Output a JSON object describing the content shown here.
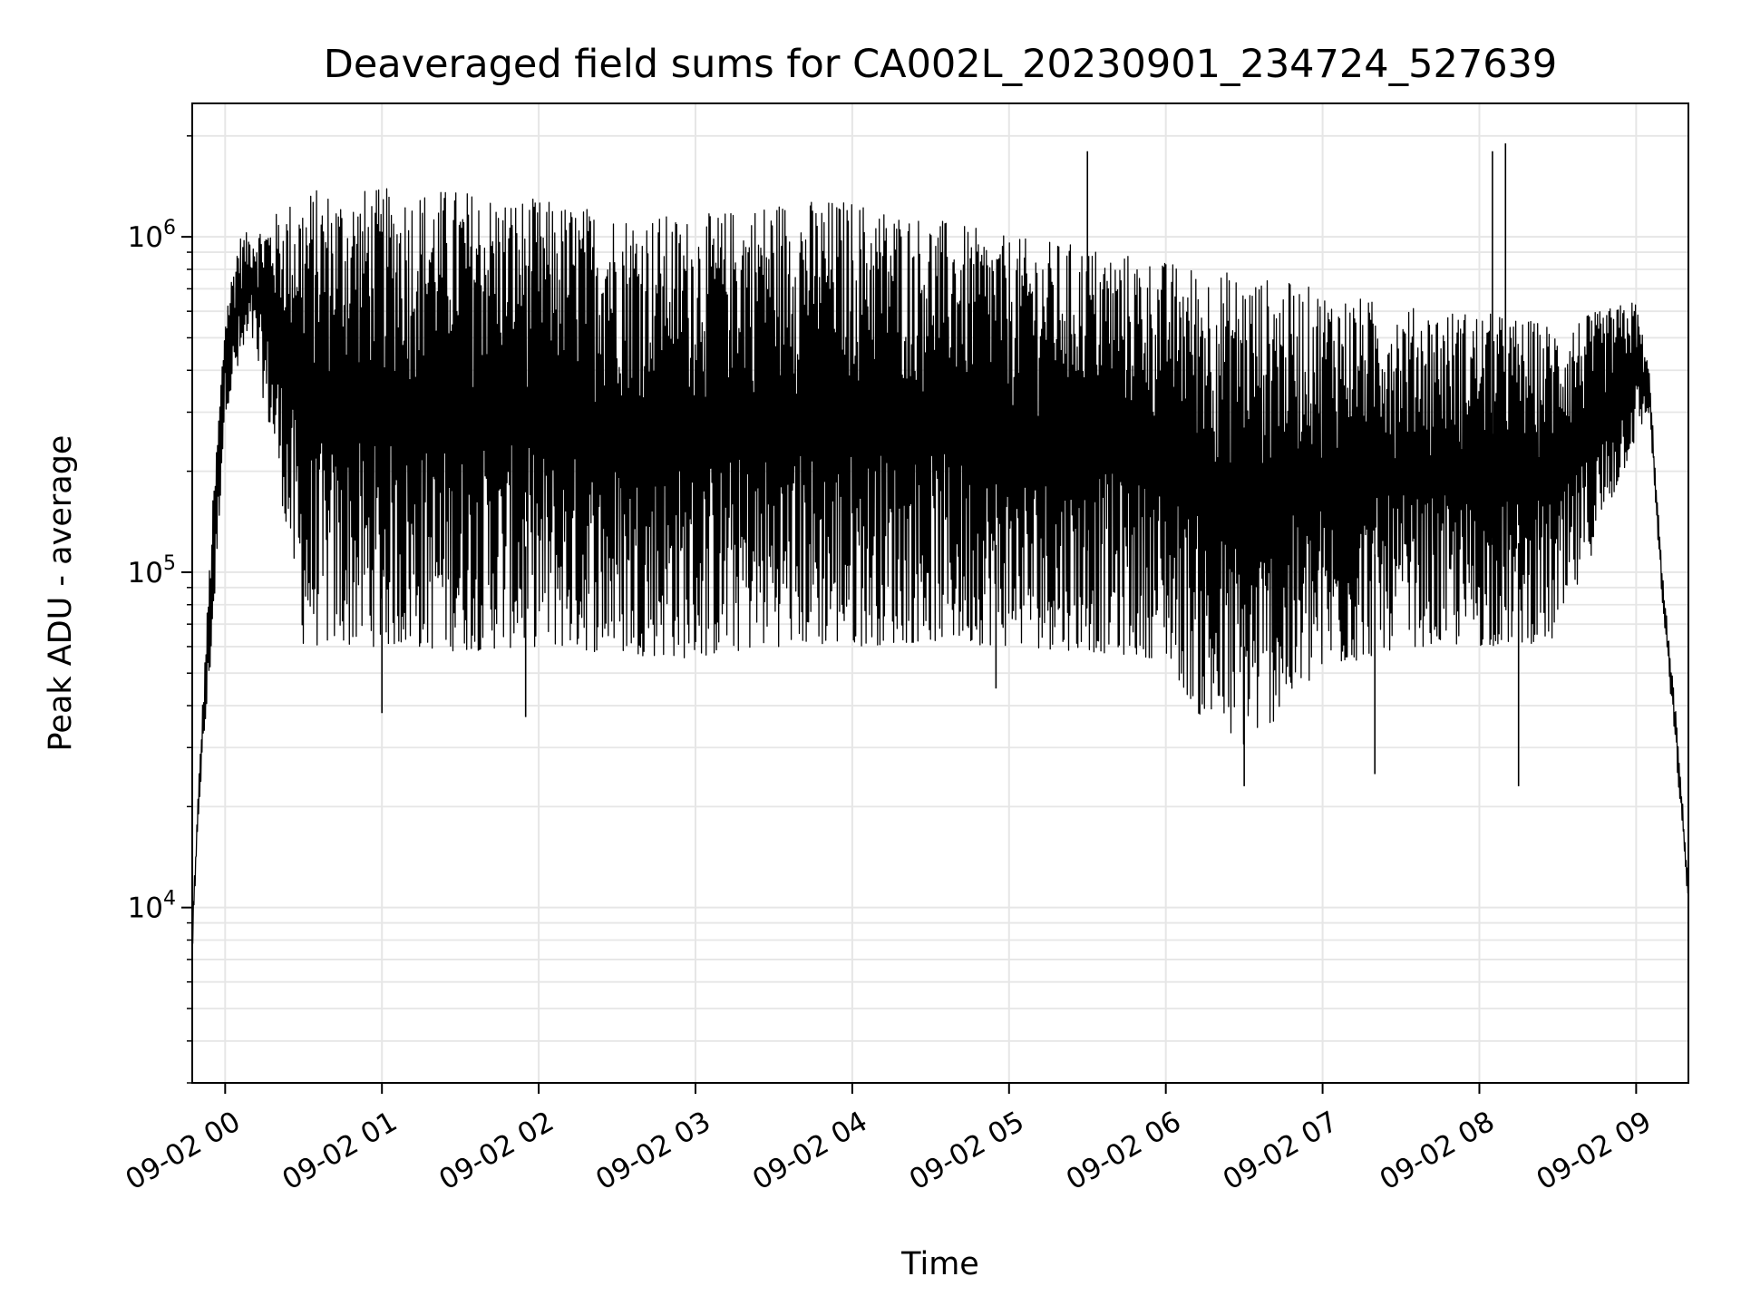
{
  "chart_data": {
    "type": "line",
    "title": "Deaveraged field sums for CA002L_20230901_234724_527639",
    "xlabel": "Time",
    "ylabel": "Peak ADU - average",
    "yscale": "log",
    "ylim": [
      3000,
      2500000
    ],
    "xlim": [
      "2023-09-01 23:47:24",
      "2023-09-02 09:20:00"
    ],
    "grid": true,
    "legend": "none",
    "colors": {
      "line": "#000000",
      "grid": "#e6e6e6"
    },
    "x_ticks": [
      {
        "time": "2023-09-02 00:00",
        "label": "09-02 00"
      },
      {
        "time": "2023-09-02 01:00",
        "label": "09-02 01"
      },
      {
        "time": "2023-09-02 02:00",
        "label": "09-02 02"
      },
      {
        "time": "2023-09-02 03:00",
        "label": "09-02 03"
      },
      {
        "time": "2023-09-02 04:00",
        "label": "09-02 04"
      },
      {
        "time": "2023-09-02 05:00",
        "label": "09-02 05"
      },
      {
        "time": "2023-09-02 06:00",
        "label": "09-02 06"
      },
      {
        "time": "2023-09-02 07:00",
        "label": "09-02 07"
      },
      {
        "time": "2023-09-02 08:00",
        "label": "09-02 08"
      },
      {
        "time": "2023-09-02 09:00",
        "label": "09-02 09"
      }
    ],
    "y_ticks": [
      {
        "value": 10000,
        "base": "10",
        "exp": "4"
      },
      {
        "value": 100000,
        "base": "10",
        "exp": "5"
      },
      {
        "value": 1000000,
        "base": "10",
        "exp": "6"
      }
    ],
    "series": [
      {
        "style": "dense oscillating trace between lower and upper envelopes",
        "upper_envelope": [
          [
            "2023-09-01 23:47:24",
            9000
          ],
          [
            "2023-09-01 23:50",
            25000
          ],
          [
            "2023-09-01 23:55",
            150000
          ],
          [
            "2023-09-02 00:00",
            600000
          ],
          [
            "2023-09-02 00:05",
            1000000
          ],
          [
            "2023-09-02 00:15",
            1100000
          ],
          [
            "2023-09-02 00:30",
            1400000
          ],
          [
            "2023-09-02 01:00",
            1400000
          ],
          [
            "2023-09-02 01:30",
            1400000
          ],
          [
            "2023-09-02 02:00",
            1300000
          ],
          [
            "2023-09-02 02:30",
            1200000
          ],
          [
            "2023-09-02 03:00",
            1150000
          ],
          [
            "2023-09-02 03:30",
            1300000
          ],
          [
            "2023-09-02 04:00",
            1300000
          ],
          [
            "2023-09-02 04:30",
            1150000
          ],
          [
            "2023-09-02 05:00",
            1000000
          ],
          [
            "2023-09-02 05:30",
            950000
          ],
          [
            "2023-09-02 06:00",
            850000
          ],
          [
            "2023-09-02 06:30",
            780000
          ],
          [
            "2023-09-02 07:00",
            700000
          ],
          [
            "2023-09-02 07:30",
            620000
          ],
          [
            "2023-09-02 08:00",
            600000
          ],
          [
            "2023-09-02 08:30",
            550000
          ],
          [
            "2023-09-02 09:00",
            650000
          ],
          [
            "2023-09-02 09:05",
            400000
          ],
          [
            "2023-09-02 09:10",
            100000
          ],
          [
            "2023-09-02 09:15",
            40000
          ],
          [
            "2023-09-02 09:20:00",
            12000
          ]
        ],
        "lower_envelope": [
          [
            "2023-09-01 23:47:24",
            7000
          ],
          [
            "2023-09-01 23:50",
            20000
          ],
          [
            "2023-09-01 23:55",
            60000
          ],
          [
            "2023-09-02 00:00",
            300000
          ],
          [
            "2023-09-02 00:10",
            500000
          ],
          [
            "2023-09-02 00:20",
            200000
          ],
          [
            "2023-09-02 00:30",
            60000
          ],
          [
            "2023-09-02 01:00",
            60000
          ],
          [
            "2023-09-02 01:30",
            58000
          ],
          [
            "2023-09-02 02:00",
            60000
          ],
          [
            "2023-09-02 02:30",
            57000
          ],
          [
            "2023-09-02 03:00",
            55000
          ],
          [
            "2023-09-02 03:30",
            60000
          ],
          [
            "2023-09-02 04:00",
            60000
          ],
          [
            "2023-09-02 04:30",
            62000
          ],
          [
            "2023-09-02 05:00",
            60000
          ],
          [
            "2023-09-02 05:30",
            58000
          ],
          [
            "2023-09-02 06:00",
            55000
          ],
          [
            "2023-09-02 06:15",
            35000
          ],
          [
            "2023-09-02 06:30",
            30000
          ],
          [
            "2023-09-02 06:45",
            38000
          ],
          [
            "2023-09-02 07:00",
            50000
          ],
          [
            "2023-09-02 07:30",
            60000
          ],
          [
            "2023-09-02 08:00",
            60000
          ],
          [
            "2023-09-02 08:30",
            62000
          ],
          [
            "2023-09-02 09:00",
            250000
          ],
          [
            "2023-09-02 09:05",
            300000
          ],
          [
            "2023-09-02 09:10",
            80000
          ],
          [
            "2023-09-02 09:15",
            30000
          ],
          [
            "2023-09-02 09:20:00",
            10000
          ]
        ],
        "spikes": [
          [
            "2023-09-02 05:30",
            1800000
          ],
          [
            "2023-09-02 08:05",
            1800000
          ],
          [
            "2023-09-02 08:10",
            1900000
          ],
          [
            "2023-09-02 06:30",
            23000
          ],
          [
            "2023-09-02 04:55",
            45000
          ],
          [
            "2023-09-02 01:00",
            38000
          ],
          [
            "2023-09-02 01:55",
            37000
          ],
          [
            "2023-09-02 07:20",
            25000
          ],
          [
            "2023-09-02 08:15",
            23000
          ]
        ]
      }
    ]
  }
}
